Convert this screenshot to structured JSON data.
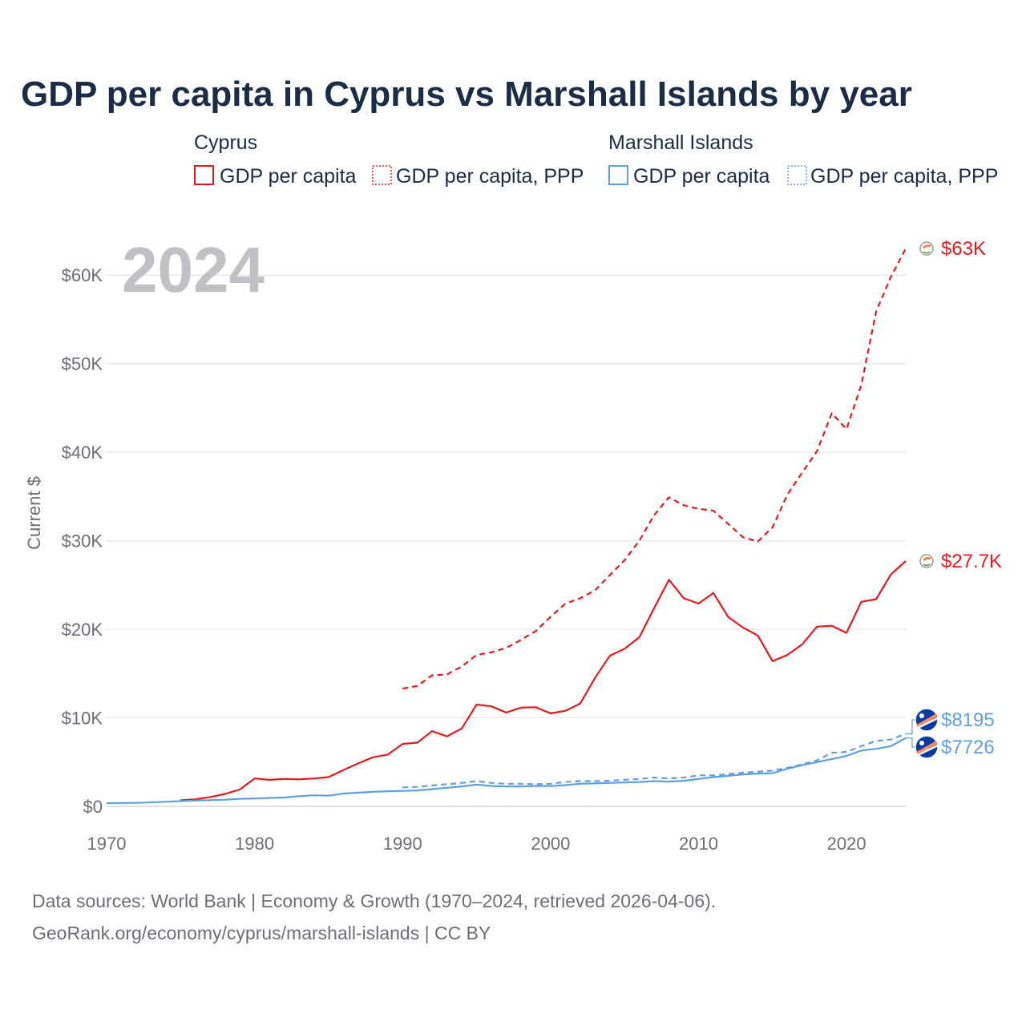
{
  "chart_data": {
    "type": "line",
    "title": "GDP per capita in Cyprus vs Marshall Islands by year",
    "year_badge": "2024",
    "ylabel": "Current $",
    "xlabel": "",
    "xlim": [
      1970,
      2024
    ],
    "ylim": [
      0,
      65000
    ],
    "x_ticks": [
      1970,
      1980,
      1990,
      2000,
      2010,
      2020
    ],
    "x_tick_labels": [
      "1970",
      "1980",
      "1990",
      "2000",
      "2010",
      "2020"
    ],
    "y_ticks": [
      0,
      10000,
      20000,
      30000,
      40000,
      50000,
      60000
    ],
    "y_tick_labels": [
      "$0",
      "$10K",
      "$20K",
      "$30K",
      "$40K",
      "$50K",
      "$60K"
    ],
    "grid": true,
    "legend": {
      "groups": [
        {
          "name": "Cyprus",
          "entries": [
            "GDP per capita",
            "GDP per capita, PPP"
          ],
          "color": "#e8191c"
        },
        {
          "name": "Marshall Islands",
          "entries": [
            "GDP per capita",
            "GDP per capita, PPP"
          ],
          "color": "#5f9fe3"
        }
      ],
      "placement": "top"
    },
    "series": [
      {
        "name": "Cyprus GDP per capita",
        "country": "Cyprus",
        "style": "solid",
        "color": "#e8191c",
        "x": [
          1975,
          1976,
          1977,
          1978,
          1979,
          1980,
          1981,
          1982,
          1983,
          1984,
          1985,
          1986,
          1987,
          1988,
          1989,
          1990,
          1991,
          1992,
          1993,
          1994,
          1995,
          1996,
          1997,
          1998,
          1999,
          2000,
          2001,
          2002,
          2003,
          2004,
          2005,
          2006,
          2007,
          2008,
          2009,
          2010,
          2011,
          2012,
          2013,
          2014,
          2015,
          2016,
          2017,
          2018,
          2019,
          2020,
          2021,
          2022,
          2023,
          2024
        ],
        "values": [
          700,
          800,
          1050,
          1400,
          1900,
          3150,
          3000,
          3100,
          3050,
          3150,
          3300,
          4100,
          4850,
          5550,
          5850,
          7050,
          7200,
          8500,
          7900,
          8800,
          11500,
          11300,
          10600,
          11150,
          11200,
          10500,
          10800,
          11600,
          14500,
          17000,
          17800,
          19100,
          22400,
          25600,
          23500,
          22900,
          24100,
          21400,
          20200,
          19300,
          16400,
          17100,
          18300,
          20300,
          20400,
          19600,
          23100,
          23400,
          26200,
          27700
        ],
        "end_label": "$27.7K"
      },
      {
        "name": "Cyprus GDP per capita, PPP",
        "country": "Cyprus",
        "style": "dashed",
        "color": "#e8191c",
        "x": [
          1990,
          1991,
          1992,
          1993,
          1994,
          1995,
          1996,
          1997,
          1998,
          1999,
          2000,
          2001,
          2002,
          2003,
          2004,
          2005,
          2006,
          2007,
          2008,
          2009,
          2010,
          2011,
          2012,
          2013,
          2014,
          2015,
          2016,
          2017,
          2018,
          2019,
          2020,
          2021,
          2022,
          2023,
          2024
        ],
        "values": [
          13300,
          13600,
          14800,
          14900,
          15800,
          17100,
          17400,
          17900,
          18800,
          19800,
          21400,
          22900,
          23500,
          24400,
          26100,
          27800,
          30000,
          32900,
          34900,
          34000,
          33600,
          33400,
          31900,
          30400,
          29900,
          31500,
          35200,
          37700,
          40100,
          44400,
          42600,
          47600,
          55900,
          59800,
          63000
        ],
        "end_label": "$63K"
      },
      {
        "name": "Marshall Islands GDP per capita",
        "country": "Marshall Islands",
        "style": "solid",
        "color": "#5f9fe3",
        "x": [
          1970,
          1971,
          1972,
          1973,
          1974,
          1975,
          1976,
          1977,
          1978,
          1979,
          1980,
          1981,
          1982,
          1983,
          1984,
          1985,
          1986,
          1987,
          1988,
          1989,
          1990,
          1991,
          1992,
          1993,
          1994,
          1995,
          1996,
          1997,
          1998,
          1999,
          2000,
          2001,
          2002,
          2003,
          2004,
          2005,
          2006,
          2007,
          2008,
          2009,
          2010,
          2011,
          2012,
          2013,
          2014,
          2015,
          2016,
          2017,
          2018,
          2019,
          2020,
          2021,
          2022,
          2023,
          2024
        ],
        "values": [
          350,
          370,
          400,
          450,
          520,
          600,
          650,
          700,
          750,
          850,
          900,
          950,
          1000,
          1150,
          1250,
          1200,
          1450,
          1550,
          1650,
          1700,
          1750,
          1800,
          1950,
          2100,
          2250,
          2450,
          2300,
          2250,
          2250,
          2300,
          2300,
          2400,
          2550,
          2600,
          2650,
          2700,
          2750,
          2850,
          2800,
          2900,
          3100,
          3300,
          3450,
          3600,
          3700,
          3750,
          4250,
          4650,
          5000,
          5350,
          5700,
          6300,
          6500,
          6800,
          7726
        ],
        "end_label": "$7726"
      },
      {
        "name": "Marshall Islands GDP per capita, PPP",
        "country": "Marshall Islands",
        "style": "dashed",
        "color": "#5f9fe3",
        "x": [
          1990,
          1991,
          1992,
          1993,
          1994,
          1995,
          1996,
          1997,
          1998,
          1999,
          2000,
          2001,
          2002,
          2003,
          2004,
          2005,
          2006,
          2007,
          2008,
          2009,
          2010,
          2011,
          2012,
          2013,
          2014,
          2015,
          2016,
          2017,
          2018,
          2019,
          2020,
          2021,
          2022,
          2023,
          2024
        ],
        "values": [
          2150,
          2200,
          2350,
          2500,
          2650,
          2850,
          2650,
          2550,
          2550,
          2500,
          2550,
          2750,
          2850,
          2850,
          2900,
          3000,
          3100,
          3250,
          3150,
          3250,
          3500,
          3500,
          3650,
          3800,
          3900,
          4050,
          4350,
          4750,
          5200,
          6050,
          6150,
          6800,
          7400,
          7550,
          8195
        ],
        "end_label": "$8195"
      }
    ]
  },
  "sources": {
    "line1": "Data sources: World Bank | Economy & Growth (1970–2024, retrieved 2026-04-06).",
    "line2": "GeoRank.org/economy/cyprus/marshall-islands | CC BY"
  },
  "colors": {
    "cyprus": "#e8191c",
    "marshall": "#5f9fe3",
    "grid": "#e5e5e5",
    "axis_text": "#6b6f76",
    "title": "#1b2c47"
  }
}
